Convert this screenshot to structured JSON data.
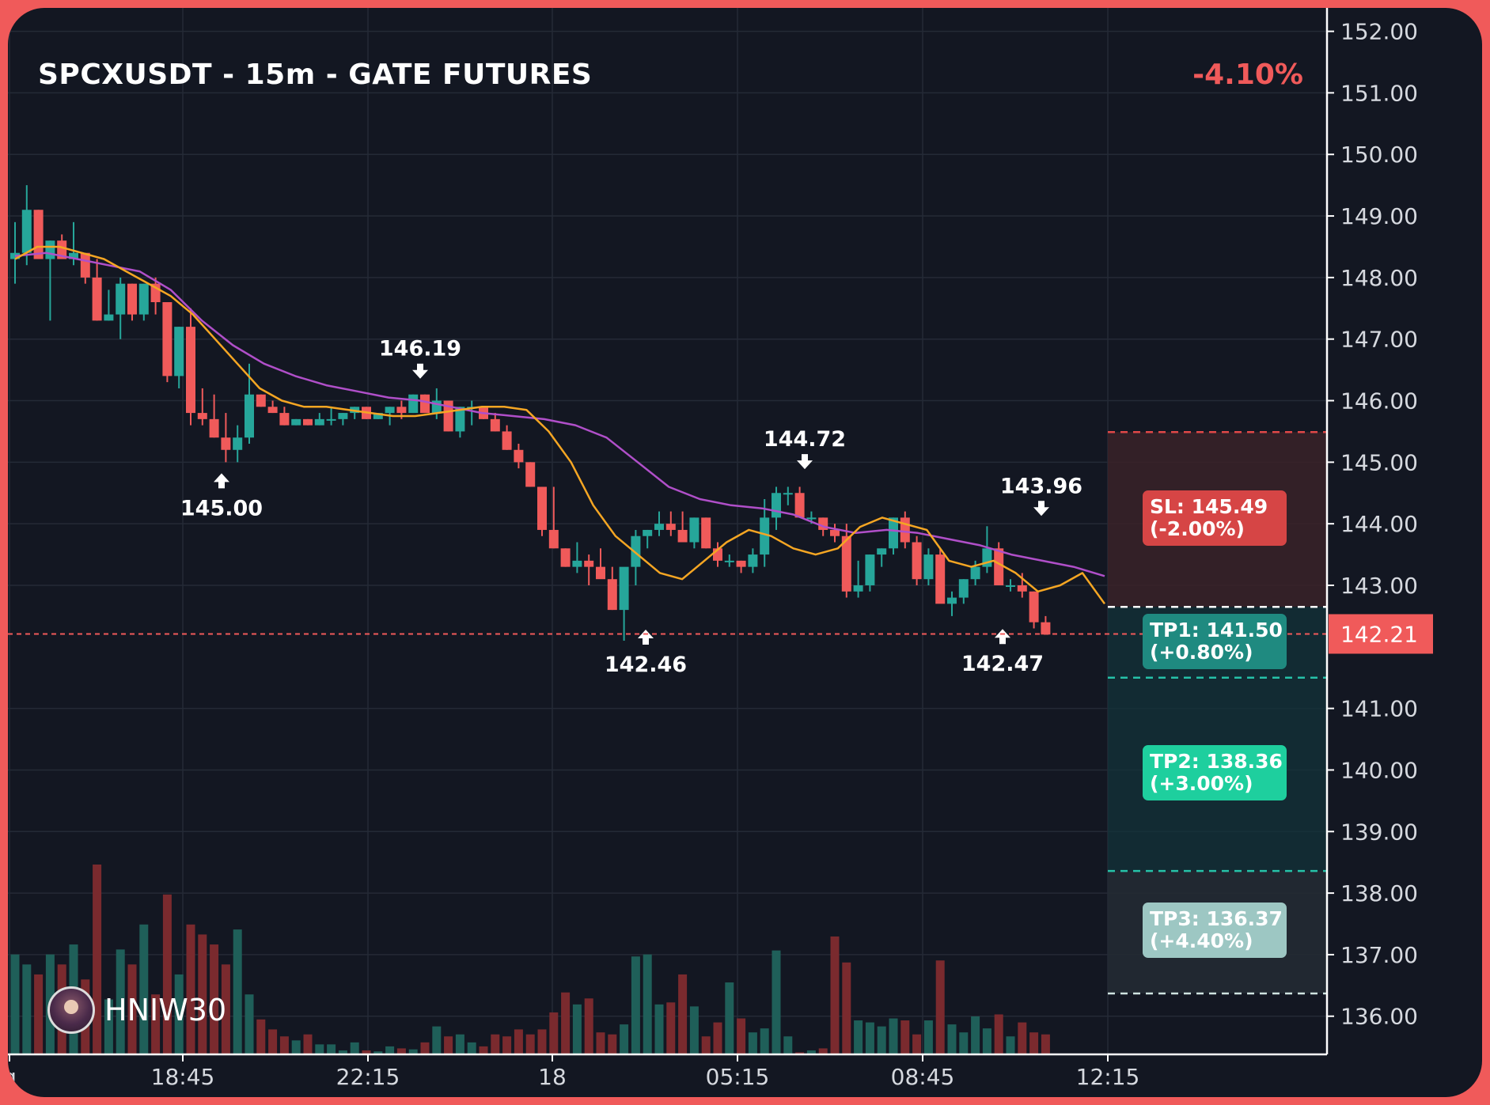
{
  "title": "SPCXUSDT - 15m - GATE FUTURES",
  "change": "-4.10%",
  "watermark": {
    "name": "HNIW30",
    "icon": "avatar-icon"
  },
  "colors": {
    "up": "#26a69a",
    "down": "#f05a5a",
    "ema_fast": "#f5a623",
    "ema_slow": "#b04fc9",
    "background": "#131722",
    "frame": "#f05a5a",
    "tp1": "#1f8a80",
    "tp2": "#1ecf9e",
    "tp3": "#9dc7c3",
    "sl": "#d64545"
  },
  "chart_data": {
    "type": "candlestick",
    "timeframe": "15m",
    "x_ticks": [
      "g",
      "18:45",
      "22:15",
      "18",
      "05:15",
      "08:45",
      "12:15"
    ],
    "y_ticks": [
      "152.00",
      "151.00",
      "150.00",
      "149.00",
      "148.00",
      "147.00",
      "146.00",
      "145.00",
      "144.00",
      "143.00",
      "141.00",
      "140.00",
      "139.00",
      "138.00",
      "137.00",
      "136.00"
    ],
    "ylim": [
      135.38,
      152.38
    ],
    "current_price": 142.21,
    "current_price_label": "142.21",
    "grid": true,
    "candles": [
      [
        148.3,
        148.9,
        147.9,
        148.4
      ],
      [
        148.4,
        149.5,
        148.2,
        149.1
      ],
      [
        149.1,
        149.1,
        148.3,
        148.3
      ],
      [
        148.3,
        148.6,
        147.3,
        148.6
      ],
      [
        148.6,
        148.7,
        148.3,
        148.3
      ],
      [
        148.3,
        148.9,
        148.2,
        148.4
      ],
      [
        148.4,
        148.4,
        147.9,
        148.0
      ],
      [
        148.0,
        148.3,
        147.3,
        147.3
      ],
      [
        147.3,
        147.8,
        147.3,
        147.4
      ],
      [
        147.4,
        148.0,
        147.0,
        147.9
      ],
      [
        147.9,
        147.9,
        147.3,
        147.4
      ],
      [
        147.4,
        147.9,
        147.3,
        147.9
      ],
      [
        147.9,
        148.0,
        147.4,
        147.6
      ],
      [
        147.6,
        147.6,
        146.3,
        146.4
      ],
      [
        146.4,
        147.2,
        146.2,
        147.2
      ],
      [
        147.2,
        147.5,
        145.6,
        145.8
      ],
      [
        145.8,
        146.2,
        145.6,
        145.7
      ],
      [
        145.7,
        146.1,
        145.4,
        145.4
      ],
      [
        145.4,
        145.8,
        145.0,
        145.2
      ],
      [
        145.2,
        145.6,
        145.0,
        145.4
      ],
      [
        145.4,
        146.6,
        145.3,
        146.1
      ],
      [
        146.1,
        146.1,
        145.9,
        145.9
      ],
      [
        145.9,
        146.0,
        145.8,
        145.8
      ],
      [
        145.8,
        145.9,
        145.6,
        145.6
      ],
      [
        145.6,
        145.7,
        145.6,
        145.7
      ],
      [
        145.7,
        145.7,
        145.6,
        145.6
      ],
      [
        145.6,
        145.8,
        145.6,
        145.7
      ],
      [
        145.7,
        145.9,
        145.6,
        145.7
      ],
      [
        145.7,
        145.8,
        145.6,
        145.8
      ],
      [
        145.8,
        145.9,
        145.7,
        145.9
      ],
      [
        145.9,
        145.9,
        145.7,
        145.7
      ],
      [
        145.7,
        145.8,
        145.7,
        145.8
      ],
      [
        145.8,
        145.9,
        145.6,
        145.9
      ],
      [
        145.9,
        146.0,
        145.7,
        145.8
      ],
      [
        145.8,
        146.1,
        145.8,
        146.1
      ],
      [
        146.1,
        146.1,
        145.8,
        145.8
      ],
      [
        145.8,
        146.2,
        145.7,
        146.0
      ],
      [
        146.0,
        146.0,
        145.5,
        145.5
      ],
      [
        145.5,
        145.9,
        145.4,
        145.9
      ],
      [
        145.9,
        146.0,
        145.6,
        145.9
      ],
      [
        145.9,
        145.9,
        145.7,
        145.7
      ],
      [
        145.7,
        145.8,
        145.5,
        145.5
      ],
      [
        145.5,
        145.6,
        145.2,
        145.2
      ],
      [
        145.2,
        145.3,
        144.9,
        145.0
      ],
      [
        145.0,
        145.0,
        144.6,
        144.6
      ],
      [
        144.6,
        144.6,
        143.8,
        143.9
      ],
      [
        143.9,
        144.6,
        143.6,
        143.6
      ],
      [
        143.6,
        143.6,
        143.3,
        143.3
      ],
      [
        143.3,
        143.7,
        143.2,
        143.4
      ],
      [
        143.4,
        143.5,
        143.0,
        143.3
      ],
      [
        143.3,
        143.6,
        143.2,
        143.1
      ],
      [
        143.1,
        143.3,
        142.6,
        142.6
      ],
      [
        142.6,
        143.2,
        142.1,
        143.3
      ],
      [
        143.3,
        143.9,
        143.0,
        143.8
      ],
      [
        143.8,
        143.9,
        143.6,
        143.9
      ],
      [
        143.9,
        144.2,
        143.8,
        144.0
      ],
      [
        144.0,
        144.2,
        143.8,
        143.9
      ],
      [
        143.9,
        144.2,
        143.7,
        143.7
      ],
      [
        143.7,
        144.1,
        143.6,
        144.1
      ],
      [
        144.1,
        144.1,
        143.6,
        143.6
      ],
      [
        143.6,
        143.7,
        143.3,
        143.4
      ],
      [
        143.4,
        143.5,
        143.3,
        143.4
      ],
      [
        143.4,
        143.4,
        143.2,
        143.3
      ],
      [
        143.3,
        143.6,
        143.2,
        143.5
      ],
      [
        143.5,
        144.4,
        143.3,
        144.1
      ],
      [
        144.1,
        144.6,
        143.9,
        144.5
      ],
      [
        144.5,
        144.6,
        144.3,
        144.5
      ],
      [
        144.5,
        144.6,
        144.1,
        144.1
      ],
      [
        144.1,
        144.2,
        144.0,
        144.1
      ],
      [
        144.1,
        144.1,
        143.8,
        143.9
      ],
      [
        143.9,
        144.0,
        143.7,
        143.8
      ],
      [
        143.8,
        144.0,
        142.8,
        142.9
      ],
      [
        142.9,
        143.4,
        142.8,
        143.0
      ],
      [
        143.0,
        143.5,
        142.9,
        143.5
      ],
      [
        143.5,
        143.6,
        143.3,
        143.6
      ],
      [
        143.6,
        144.1,
        143.5,
        144.1
      ],
      [
        144.1,
        144.2,
        143.6,
        143.7
      ],
      [
        143.7,
        143.8,
        143.0,
        143.1
      ],
      [
        143.1,
        143.6,
        143.0,
        143.5
      ],
      [
        143.5,
        143.6,
        142.8,
        142.7
      ],
      [
        142.7,
        142.9,
        142.5,
        142.8
      ],
      [
        142.8,
        143.1,
        142.7,
        143.1
      ],
      [
        143.1,
        143.4,
        143.0,
        143.3
      ],
      [
        143.3,
        143.96,
        143.2,
        143.6
      ],
      [
        143.6,
        143.7,
        143.0,
        143.0
      ],
      [
        143.0,
        143.1,
        142.9,
        143.0
      ],
      [
        143.0,
        143.2,
        142.8,
        142.9
      ],
      [
        142.9,
        142.9,
        142.3,
        142.4
      ],
      [
        142.4,
        142.5,
        142.2,
        142.2
      ]
    ],
    "volume": [
      100,
      90,
      80,
      100,
      90,
      110,
      75,
      190,
      55,
      105,
      90,
      130,
      60,
      160,
      80,
      130,
      120,
      110,
      90,
      125,
      60,
      35,
      25,
      18,
      14,
      20,
      10,
      10,
      4,
      12,
      4,
      3,
      8,
      6,
      5,
      12,
      28,
      18,
      20,
      12,
      8,
      20,
      18,
      25,
      20,
      25,
      42,
      62,
      50,
      56,
      22,
      20,
      30,
      98,
      100,
      50,
      52,
      80,
      48,
      18,
      32,
      72,
      36,
      22,
      26,
      104,
      18,
      2,
      4,
      6,
      118,
      92,
      34,
      32,
      28,
      36,
      34,
      20,
      34,
      94,
      30,
      22,
      38,
      26,
      40,
      18,
      32,
      22,
      20
    ],
    "volume_ylim": [
      0,
      190
    ],
    "ema_fast": [
      148.3,
      148.5,
      148.5,
      148.4,
      148.3,
      148.1,
      147.9,
      147.7,
      147.4,
      147.0,
      146.6,
      146.2,
      146.0,
      145.9,
      145.9,
      145.85,
      145.8,
      145.75,
      145.75,
      145.8,
      145.85,
      145.9,
      145.9,
      145.85,
      145.5,
      145.0,
      144.3,
      143.8,
      143.5,
      143.2,
      143.1,
      143.4,
      143.7,
      143.9,
      143.8,
      143.6,
      143.5,
      143.6,
      143.95,
      144.1,
      144.0,
      143.9,
      143.4,
      143.3,
      143.4,
      143.2,
      142.9,
      143.0,
      143.2,
      142.7
    ],
    "ema_slow": [
      148.35,
      148.4,
      148.3,
      148.2,
      148.1,
      147.8,
      147.3,
      146.9,
      146.6,
      146.4,
      146.25,
      146.15,
      146.05,
      146.0,
      145.9,
      145.8,
      145.75,
      145.7,
      145.6,
      145.4,
      145.0,
      144.6,
      144.4,
      144.3,
      144.25,
      144.15,
      143.95,
      143.85,
      143.9,
      143.85,
      143.75,
      143.65,
      143.5,
      143.4,
      143.3,
      143.15
    ],
    "swing_labels": [
      {
        "label": "146.19",
        "price": 146.19,
        "side": "high"
      },
      {
        "label": "145.00",
        "price": 145.0,
        "side": "low"
      },
      {
        "label": "144.72",
        "price": 144.72,
        "side": "high"
      },
      {
        "label": "142.46",
        "price": 142.46,
        "side": "low"
      },
      {
        "label": "143.96",
        "price": 143.96,
        "side": "high"
      },
      {
        "label": "142.47",
        "price": 142.47,
        "side": "low"
      }
    ],
    "levels": {
      "sl": {
        "price": 145.49,
        "label": "SL: 145.49",
        "pct": "(-2.00%)"
      },
      "entry": {
        "price": 142.65
      },
      "tp1": {
        "price": 141.5,
        "label": "TP1: 141.50",
        "pct": "(+0.80%)"
      },
      "tp2": {
        "price": 138.36,
        "label": "TP2: 138.36",
        "pct": "(+3.00%)"
      },
      "tp3": {
        "price": 136.37,
        "label": "TP3: 136.37",
        "pct": "(+4.40%)"
      }
    }
  }
}
